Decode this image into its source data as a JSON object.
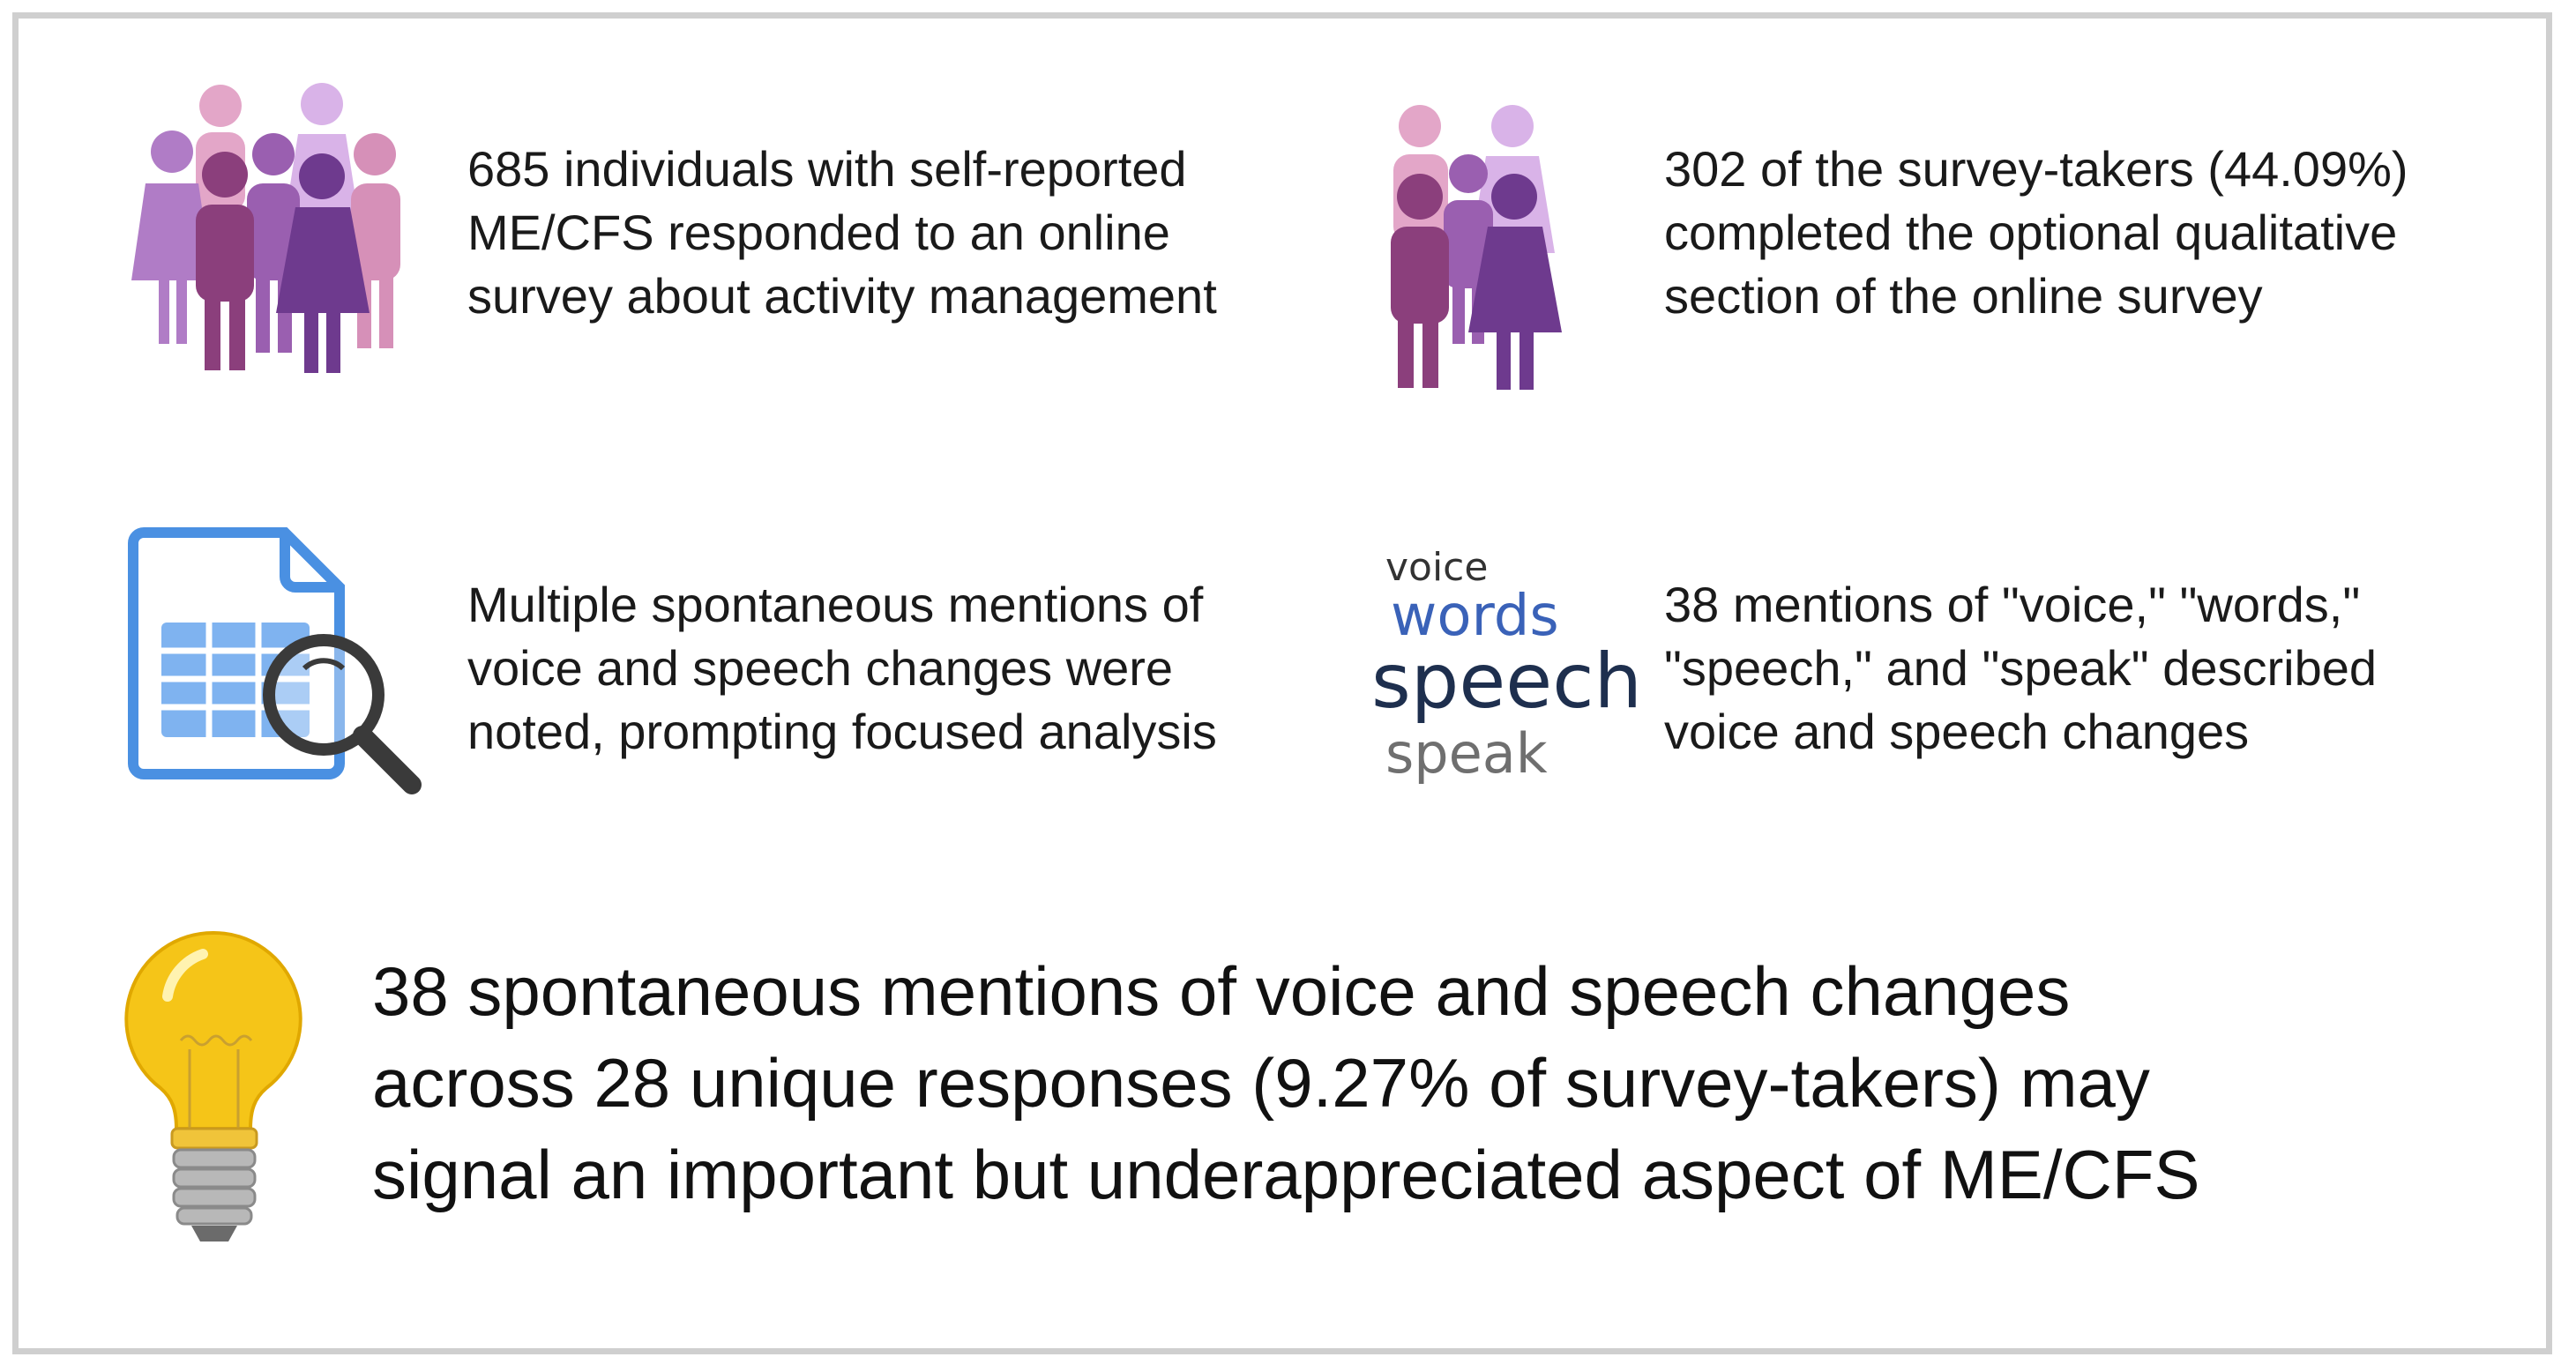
{
  "panels": [
    {
      "icon": "people-group-large-icon",
      "text_lines": [
        "685 individuals with self-reported",
        "ME/CFS responded to an online",
        "survey about activity management"
      ]
    },
    {
      "icon": "people-group-small-icon",
      "text_lines": [
        "302 of the survey-takers (44.09%)",
        "completed the optional qualitative",
        "section of the online survey"
      ]
    },
    {
      "icon": "document-search-icon",
      "text_lines": [
        "Multiple spontaneous mentions of",
        "voice and speech changes were",
        "noted, prompting focused analysis"
      ]
    },
    {
      "icon": "word-cloud-icon",
      "text_lines": [
        "38 mentions of \"voice,\" \"words,\"",
        "\"speech,\" and \"speak\" described",
        "voice and speech changes"
      ]
    }
  ],
  "word_cloud": {
    "words": [
      "voice",
      "words",
      "speech",
      "speak"
    ]
  },
  "conclusion": {
    "icon": "lightbulb-icon",
    "text_lines": [
      "38 spontaneous mentions of voice and speech changes",
      "across 28 unique responses (9.27% of survey-takers) may",
      "signal an important but underappreciated aspect of ME/CFS"
    ]
  },
  "colors": {
    "border": "#cfcfcf",
    "accent_blue": "#4a90e2",
    "purple_dark": "#7a3b86",
    "purple_light": "#c9a0dc",
    "bulb_yellow": "#f5c518"
  }
}
